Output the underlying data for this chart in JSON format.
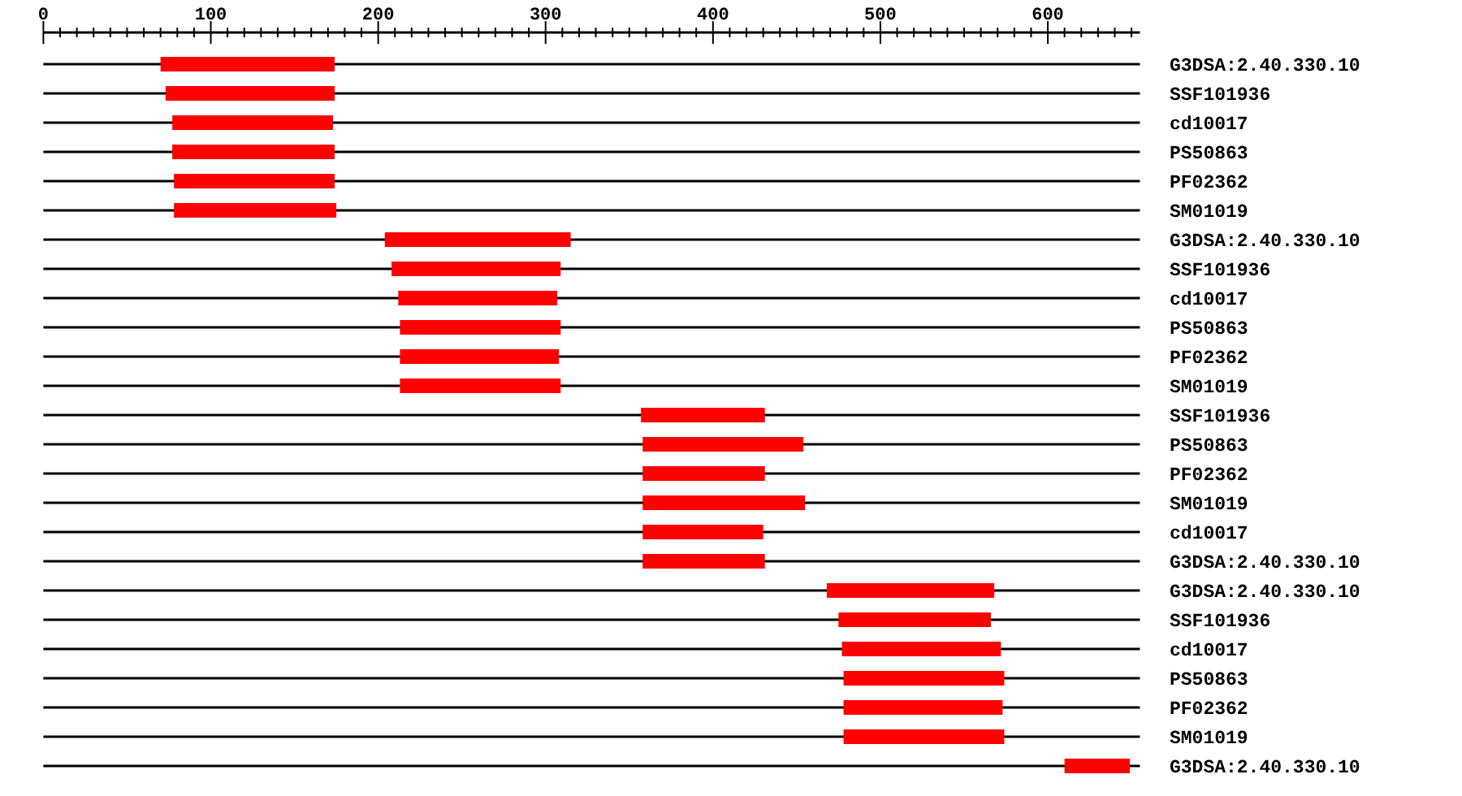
{
  "chart_data": {
    "type": "bar",
    "orientation": "horizontal",
    "categories": [
      "G3DSA:2.40.330.10",
      "SSF101936",
      "cd10017",
      "PS50863",
      "PF02362",
      "SM01019",
      "G3DSA:2.40.330.10",
      "SSF101936",
      "cd10017",
      "PS50863",
      "PF02362",
      "SM01019",
      "SSF101936",
      "PS50863",
      "PF02362",
      "SM01019",
      "cd10017",
      "G3DSA:2.40.330.10",
      "G3DSA:2.40.330.10",
      "SSF101936",
      "cd10017",
      "PS50863",
      "PF02362",
      "SM01019",
      "G3DSA:2.40.330.10"
    ],
    "base": [
      70,
      73,
      77,
      77,
      78,
      78,
      204,
      208,
      212,
      213,
      213,
      213,
      357,
      358,
      358,
      358,
      358,
      358,
      468,
      475,
      477,
      478,
      478,
      478,
      610
    ],
    "values": [
      104,
      101,
      96,
      97,
      96,
      97,
      111,
      101,
      95,
      96,
      95,
      96,
      74,
      96,
      73,
      97,
      72,
      73,
      100,
      91,
      95,
      96,
      95,
      96,
      39
    ],
    "color": "#ff0000",
    "xlim": [
      0,
      655
    ],
    "xticks": [
      0,
      {
        "value": 10,
        "label": null
      },
      {
        "value": 20,
        "label": null
      },
      {
        "value": 30,
        "label": null
      },
      {
        "value": 40,
        "label": null
      },
      {
        "value": 50,
        "label": null
      },
      {
        "value": 60,
        "label": null
      },
      {
        "value": 70,
        "label": null
      },
      {
        "value": 80,
        "label": null
      },
      {
        "value": 90,
        "label": null
      },
      100,
      {
        "value": 110,
        "label": null
      },
      {
        "value": 120,
        "label": null
      },
      {
        "value": 130,
        "label": null
      },
      {
        "value": 140,
        "label": null
      },
      {
        "value": 150,
        "label": null
      },
      {
        "value": 160,
        "label": null
      },
      {
        "value": 170,
        "label": null
      },
      {
        "value": 180,
        "label": null
      },
      {
        "value": 190,
        "label": null
      },
      200,
      {
        "value": 210,
        "label": null
      },
      {
        "value": 220,
        "label": null
      },
      {
        "value": 230,
        "label": null
      },
      {
        "value": 240,
        "label": null
      },
      {
        "value": 250,
        "label": null
      },
      {
        "value": 260,
        "label": null
      },
      {
        "value": 270,
        "label": null
      },
      {
        "value": 280,
        "label": null
      },
      {
        "value": 290,
        "label": null
      },
      300,
      {
        "value": 310,
        "label": null
      },
      {
        "value": 320,
        "label": null
      },
      {
        "value": 330,
        "label": null
      },
      {
        "value": 340,
        "label": null
      },
      {
        "value": 350,
        "label": null
      },
      {
        "value": 360,
        "label": null
      },
      {
        "value": 370,
        "label": null
      },
      {
        "value": 380,
        "label": null
      },
      {
        "value": 390,
        "label": null
      },
      400,
      {
        "value": 410,
        "label": null
      },
      {
        "value": 420,
        "label": null
      },
      {
        "value": 430,
        "label": null
      },
      {
        "value": 440,
        "label": null
      },
      {
        "value": 450,
        "label": null
      },
      {
        "value": 460,
        "label": null
      },
      {
        "value": 470,
        "label": null
      },
      {
        "value": 480,
        "label": null
      },
      {
        "value": 490,
        "label": null
      },
      500,
      {
        "value": 510,
        "label": null
      },
      {
        "value": 520,
        "label": null
      },
      {
        "value": 530,
        "label": null
      },
      {
        "value": 540,
        "label": null
      },
      {
        "value": 550,
        "label": null
      },
      {
        "value": 560,
        "label": null
      },
      {
        "value": 570,
        "label": null
      },
      {
        "value": 580,
        "label": null
      },
      {
        "value": 590,
        "label": null
      },
      600,
      {
        "value": 610,
        "label": null
      },
      {
        "value": 620,
        "label": null
      },
      {
        "value": 630,
        "label": null
      },
      {
        "value": 640,
        "label": null
      },
      {
        "value": 650,
        "label": null
      }
    ],
    "grid": "y"
  }
}
